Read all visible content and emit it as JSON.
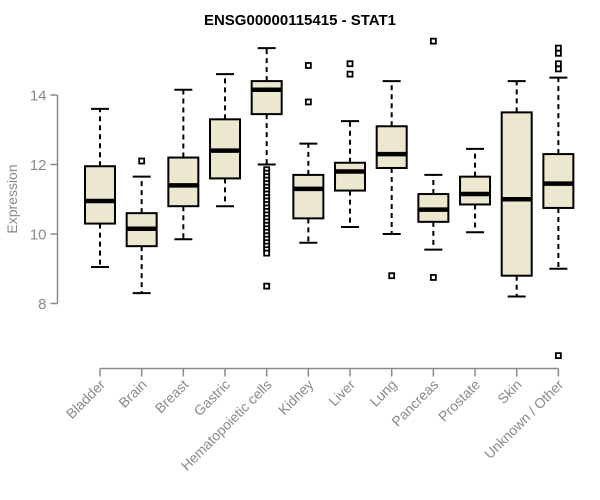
{
  "chart_data": {
    "type": "boxplot",
    "title": "ENSG00000115415 - STAT1",
    "ylabel": "Expression",
    "xlabel": "",
    "yticks": [
      8,
      10,
      12,
      14
    ],
    "y_axis_drawn_range": [
      8,
      14
    ],
    "grid": false,
    "legend": "none",
    "colors": {
      "box_fill": "#ece7cf",
      "box_line": "#000000",
      "axis": "#8a8a8a",
      "title": "#000000",
      "background": "#ffffff"
    },
    "categories": [
      "Bladder",
      "Brain",
      "Breast",
      "Gastric",
      "Hematopoietic cells",
      "Kidney",
      "Liver",
      "Lung",
      "Pancreas",
      "Prostate",
      "Skin",
      "Unknown / Other"
    ],
    "series": [
      {
        "category": "Bladder",
        "whisker_low": 9.05,
        "q1": 10.3,
        "median": 10.95,
        "q3": 11.95,
        "whisker_high": 13.6,
        "outliers": []
      },
      {
        "category": "Brain",
        "whisker_low": 8.3,
        "q1": 9.65,
        "median": 10.15,
        "q3": 10.6,
        "whisker_high": 11.65,
        "outliers": [
          12.1
        ]
      },
      {
        "category": "Breast",
        "whisker_low": 9.85,
        "q1": 10.8,
        "median": 11.4,
        "q3": 12.2,
        "whisker_high": 14.15,
        "outliers": []
      },
      {
        "category": "Gastric",
        "whisker_low": 10.8,
        "q1": 11.6,
        "median": 12.4,
        "q3": 13.3,
        "whisker_high": 14.6,
        "outliers": []
      },
      {
        "category": "Hematopoietic cells",
        "whisker_low": 12.0,
        "q1": 13.45,
        "median": 14.15,
        "q3": 14.4,
        "whisker_high": 15.35,
        "outliers": [
          11.85,
          11.75,
          11.65,
          11.55,
          11.45,
          11.35,
          11.25,
          11.15,
          11.05,
          10.95,
          10.85,
          10.75,
          10.65,
          10.55,
          10.45,
          10.35,
          10.25,
          10.15,
          10.05,
          9.95,
          9.85,
          9.75,
          9.65,
          9.55,
          9.45,
          8.5
        ]
      },
      {
        "category": "Kidney",
        "whisker_low": 9.75,
        "q1": 10.45,
        "median": 11.3,
        "q3": 11.7,
        "whisker_high": 12.6,
        "outliers": [
          14.85,
          13.8
        ]
      },
      {
        "category": "Liver",
        "whisker_low": 10.2,
        "q1": 11.25,
        "median": 11.8,
        "q3": 12.05,
        "whisker_high": 13.25,
        "outliers": [
          14.9,
          14.6
        ]
      },
      {
        "category": "Lung",
        "whisker_low": 10.0,
        "q1": 11.9,
        "median": 12.3,
        "q3": 13.1,
        "whisker_high": 14.4,
        "outliers": [
          8.8
        ]
      },
      {
        "category": "Pancreas",
        "whisker_low": 9.55,
        "q1": 10.35,
        "median": 10.7,
        "q3": 11.15,
        "whisker_high": 11.7,
        "outliers": [
          15.55,
          8.75
        ]
      },
      {
        "category": "Prostate",
        "whisker_low": 10.05,
        "q1": 10.85,
        "median": 11.15,
        "q3": 11.65,
        "whisker_high": 12.45,
        "outliers": []
      },
      {
        "category": "Skin",
        "whisker_low": 8.2,
        "q1": 8.8,
        "median": 11.0,
        "q3": 13.5,
        "whisker_high": 14.4,
        "outliers": []
      },
      {
        "category": "Unknown / Other",
        "whisker_low": 9.0,
        "q1": 10.75,
        "median": 11.45,
        "q3": 12.3,
        "whisker_high": 14.5,
        "outliers": [
          15.35,
          15.2,
          14.9,
          14.75,
          6.5
        ]
      }
    ]
  }
}
